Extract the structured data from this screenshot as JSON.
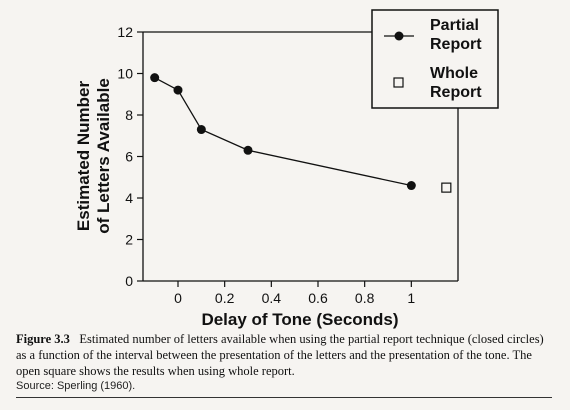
{
  "chart_data": {
    "type": "scatter",
    "xlabel": "Delay of Tone (Seconds)",
    "ylabel_line1": "Estimated Number",
    "ylabel_line2": "of Letters Available",
    "xlim": [
      -0.15,
      1.2
    ],
    "ylim": [
      0,
      12
    ],
    "x_ticks": [
      "0",
      "0.2",
      "0.4",
      "0.6",
      "0.8",
      "1"
    ],
    "x_tick_values": [
      0,
      0.2,
      0.4,
      0.6,
      0.8,
      1
    ],
    "y_ticks": [
      "0",
      "2",
      "4",
      "6",
      "8",
      "10",
      "12"
    ],
    "y_tick_values": [
      0,
      2,
      4,
      6,
      8,
      10,
      12
    ],
    "grid": false,
    "legend_position": "top-right",
    "series": [
      {
        "name": "Partial Report",
        "marker": "filled-circle",
        "connected": true,
        "x": [
          -0.1,
          0,
          0.1,
          0.3,
          1
        ],
        "y": [
          9.8,
          9.2,
          7.3,
          6.3,
          4.6
        ]
      },
      {
        "name": "Whole Report",
        "marker": "open-square",
        "connected": false,
        "x": [
          1.15
        ],
        "y": [
          4.5
        ]
      }
    ]
  },
  "legend": {
    "partial_line1": "Partial",
    "partial_line2": "Report",
    "whole_line1": "Whole",
    "whole_line2": "Report"
  },
  "caption": {
    "label": "Figure 3.3",
    "text": "Estimated number of letters available when using the partial report technique (closed circles) as a function of the interval between the presentation of the letters and the presentation of the tone. The open square shows the results when using whole report.",
    "source": "Source: Sperling (1960)."
  }
}
